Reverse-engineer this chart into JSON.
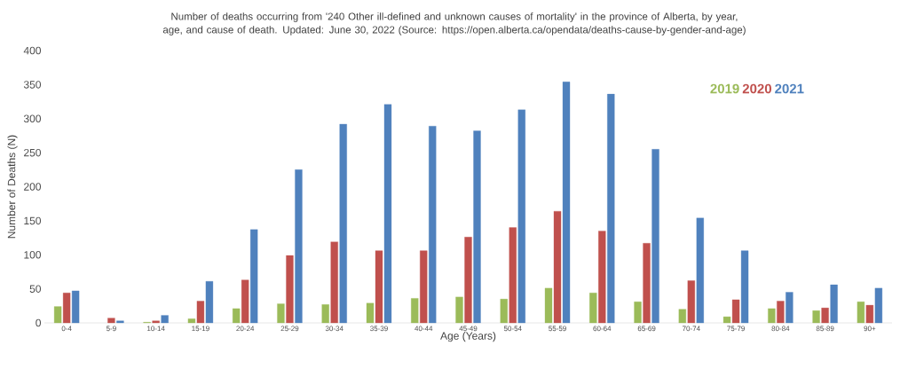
{
  "chart_data": {
    "type": "bar",
    "title": "Number of deaths occurring from '240 Other ill-defined and unknown causes of mortality' in the province of Alberta, by year, age, and cause of death. Updated: June 30, 2022 (Source: https://open.alberta.ca/opendata/deaths-cause-by-gender-and-age)",
    "xlabel": "Age (Years)",
    "ylabel": "Number of Deaths (N)",
    "categories": [
      "0-4",
      "5-9",
      "10-14",
      "15-19",
      "20-24",
      "25-29",
      "30-34",
      "35-39",
      "40-44",
      "45-49",
      "50-54",
      "55-59",
      "60-64",
      "65-69",
      "70-74",
      "75-79",
      "80-84",
      "85-89",
      "90+"
    ],
    "series": [
      {
        "name": "2019",
        "color": "#9bbb59",
        "values": [
          24,
          null,
          1,
          6,
          21,
          28,
          27,
          29,
          36,
          38,
          35,
          51,
          44,
          31,
          20,
          9,
          21,
          18,
          31
        ]
      },
      {
        "name": "2020",
        "color": "#c0504d",
        "values": [
          44,
          7,
          3,
          32,
          63,
          99,
          119,
          106,
          106,
          126,
          140,
          164,
          135,
          117,
          62,
          34,
          32,
          22,
          26
        ]
      },
      {
        "name": "2021",
        "color": "#4f81bd",
        "values": [
          47,
          3,
          11,
          61,
          137,
          225,
          292,
          321,
          289,
          282,
          313,
          354,
          336,
          255,
          154,
          106,
          45,
          56,
          51
        ]
      }
    ],
    "ylim": [
      0,
      400
    ],
    "yticks": [
      0,
      50,
      100,
      150,
      200,
      250,
      300,
      350,
      400
    ],
    "legend": "top right"
  }
}
